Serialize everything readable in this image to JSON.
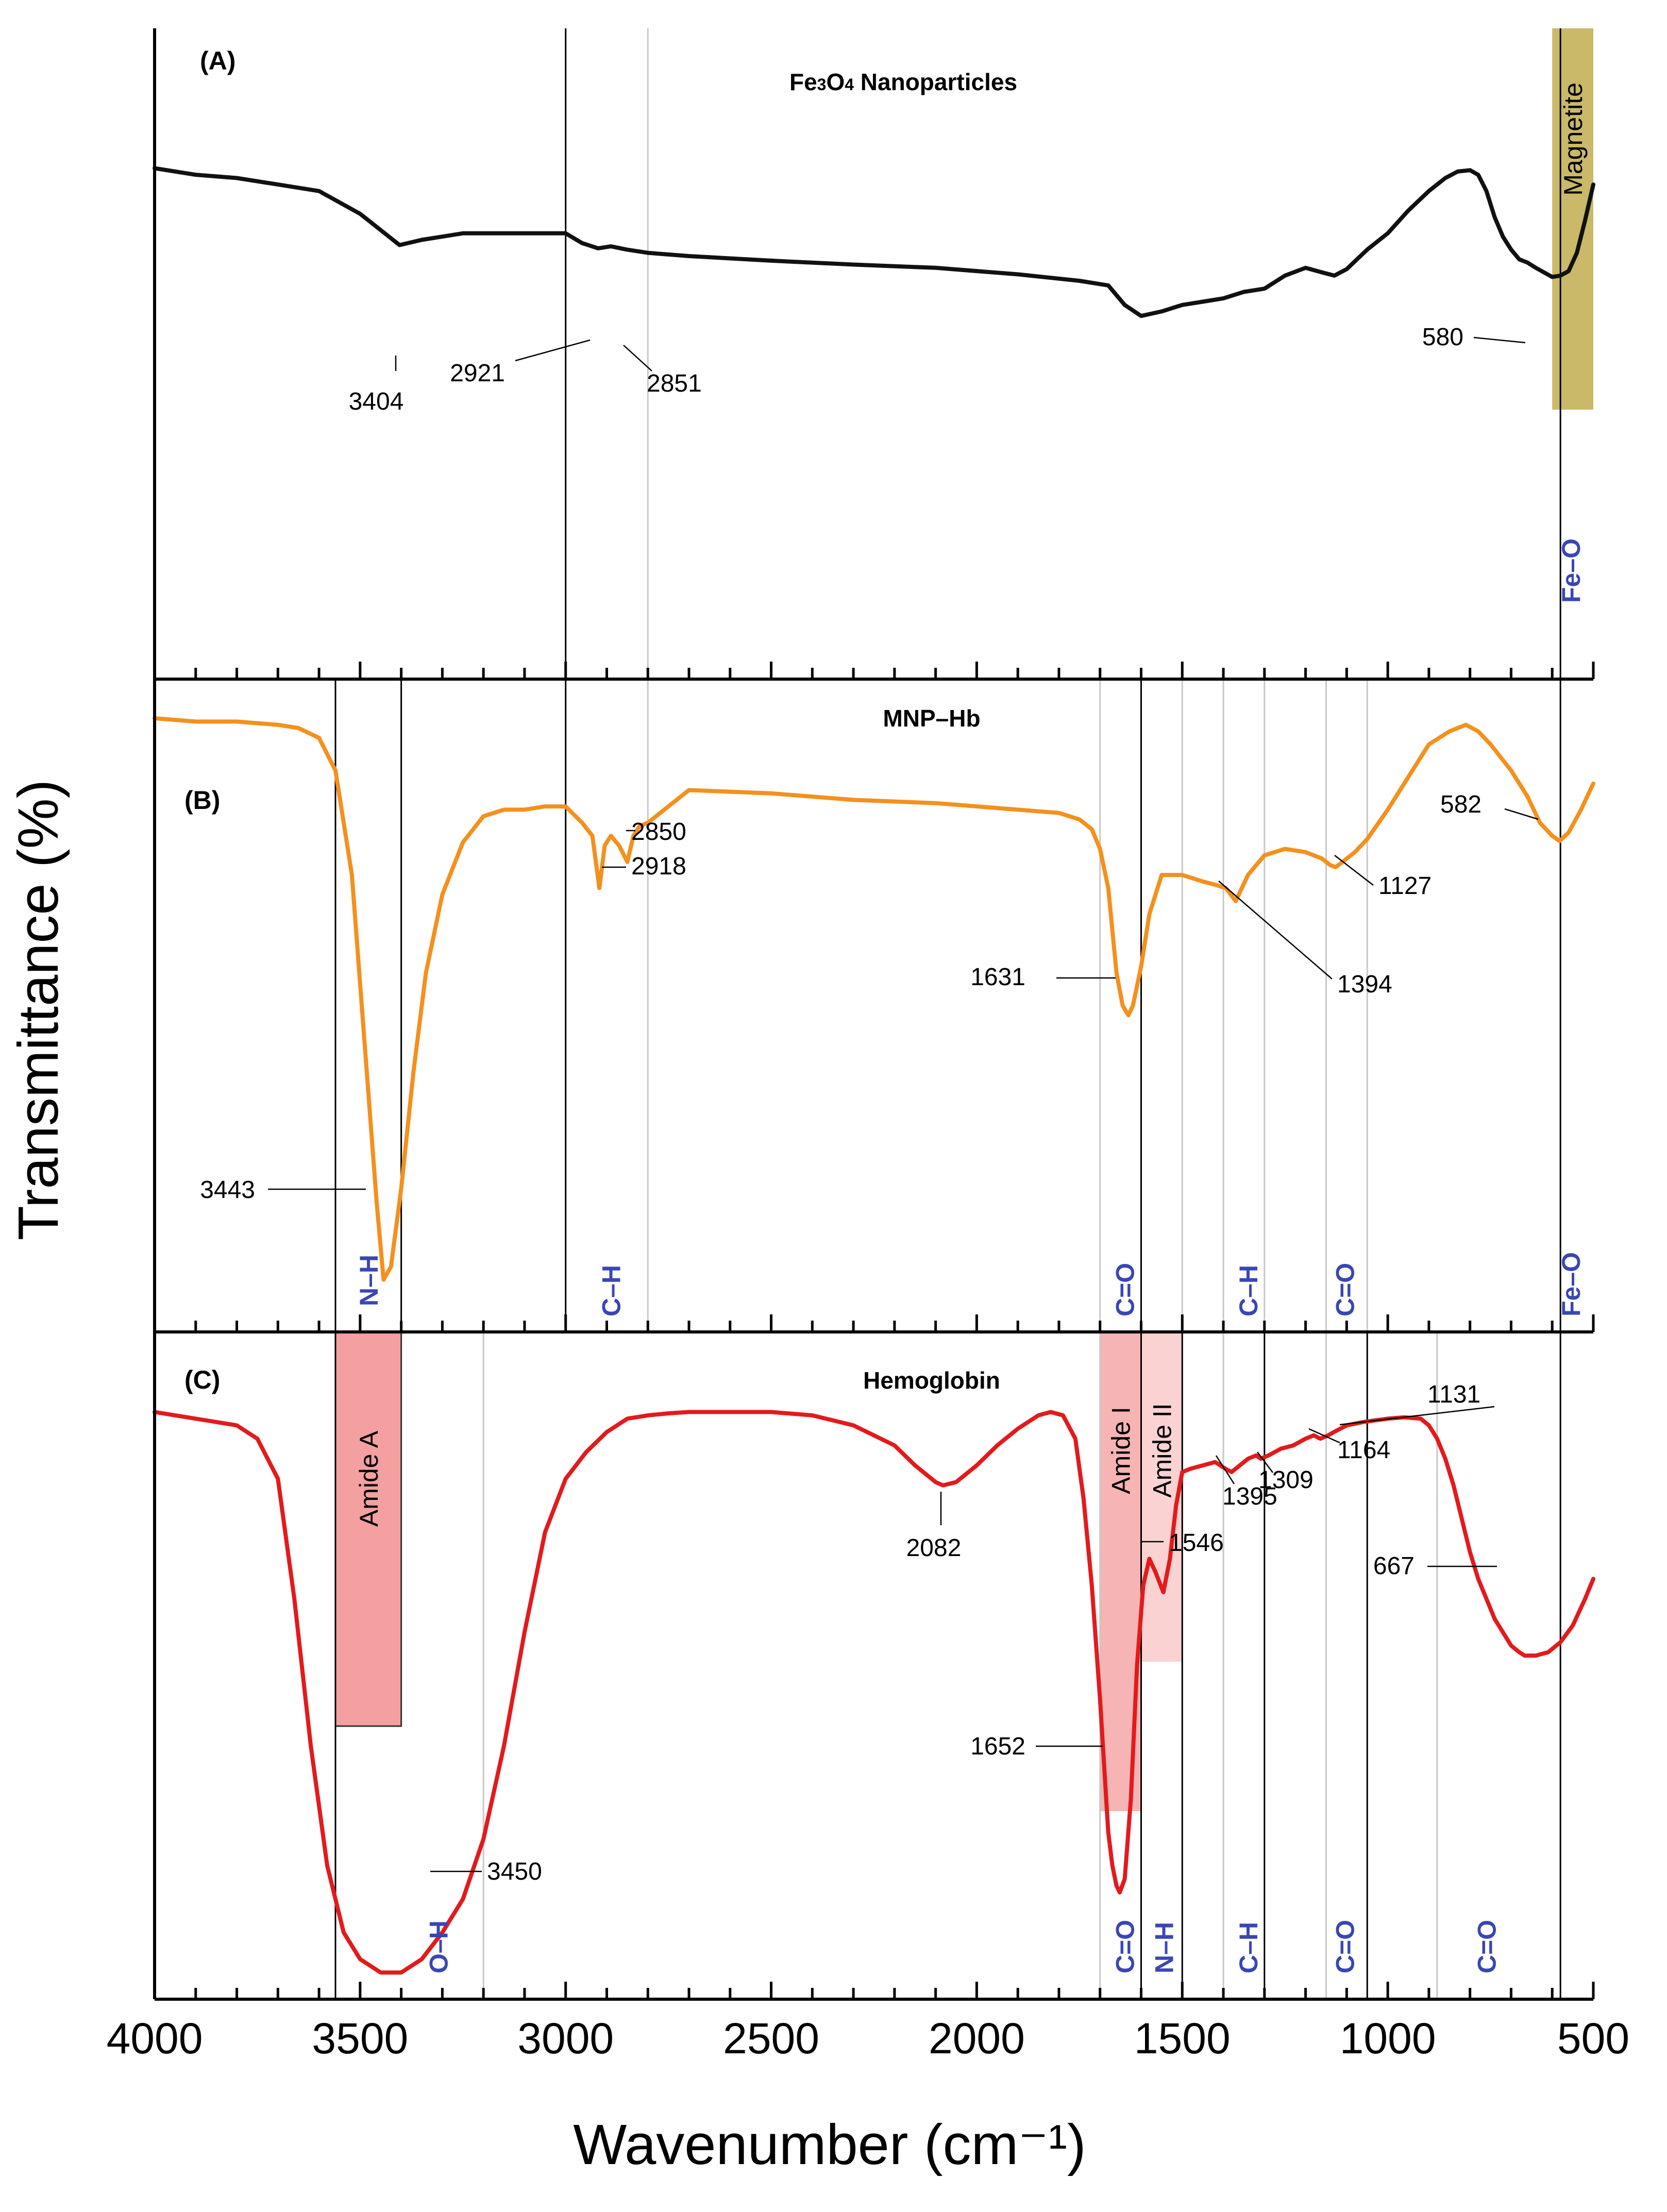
{
  "chart_data": {
    "type": "line",
    "xlabel": "Wavenumber (cm⁻¹)",
    "ylabel": "Transmittance (%)",
    "xlim": [
      4000,
      500
    ],
    "x_reversed": true,
    "x_ticks": [
      "4000",
      "3500",
      "3000",
      "2500",
      "2000",
      "1500",
      "1000",
      "500"
    ],
    "x_tick_values": [
      4000,
      3500,
      3000,
      2500,
      2000,
      1500,
      1000,
      500
    ],
    "y_unit": "relative transmittance (0 = panel bottom, 1 = panel top)",
    "panels": [
      {
        "label": "(A)",
        "title": "Fe3O4 Nanoparticles",
        "title_base": "Fe",
        "title_sub1": "3",
        "title_mid": "O",
        "title_sub2": "4",
        "title_rest": "Nanoparticles",
        "color": "#111111",
        "series": {
          "name": "Fe3O4 Nanoparticles",
          "x": [
            4000,
            3900,
            3800,
            3700,
            3600,
            3500,
            3450,
            3404,
            3350,
            3300,
            3250,
            3200,
            3100,
            3000,
            2960,
            2921,
            2890,
            2851,
            2800,
            2700,
            2500,
            2300,
            2100,
            1900,
            1750,
            1680,
            1640,
            1600,
            1550,
            1500,
            1450,
            1400,
            1350,
            1300,
            1250,
            1200,
            1160,
            1130,
            1100,
            1050,
            1000,
            950,
            900,
            860,
            830,
            800,
            780,
            760,
            740,
            720,
            700,
            680,
            660,
            640,
            620,
            600,
            580,
            560,
            540,
            520,
            500
          ],
          "y": [
            0.785,
            0.775,
            0.77,
            0.76,
            0.75,
            0.715,
            0.69,
            0.667,
            0.675,
            0.68,
            0.685,
            0.685,
            0.685,
            0.685,
            0.67,
            0.662,
            0.665,
            0.66,
            0.655,
            0.65,
            0.643,
            0.637,
            0.632,
            0.622,
            0.612,
            0.605,
            0.575,
            0.558,
            0.565,
            0.575,
            0.58,
            0.585,
            0.595,
            0.6,
            0.62,
            0.632,
            0.625,
            0.62,
            0.63,
            0.66,
            0.685,
            0.72,
            0.75,
            0.77,
            0.78,
            0.782,
            0.775,
            0.75,
            0.71,
            0.68,
            0.66,
            0.645,
            0.64,
            0.632,
            0.625,
            0.618,
            0.62,
            0.627,
            0.655,
            0.705,
            0.76
          ]
        },
        "peaks": [
          {
            "label": "3404",
            "x": 3404
          },
          {
            "label": "2921",
            "x": 2921
          },
          {
            "label": "2851",
            "x": 2851
          },
          {
            "label": "580",
            "x": 580
          }
        ],
        "regions": [
          {
            "label": "Magnetite",
            "x": [
              600,
              500
            ],
            "color": "#c9b968"
          }
        ],
        "bonds": [
          {
            "label": "Fe–O",
            "x": 555
          }
        ]
      },
      {
        "label": "(B)",
        "title": "MNP–Hb",
        "color": "#f4901d",
        "series": {
          "name": "MNP–Hb",
          "x": [
            4000,
            3900,
            3800,
            3700,
            3650,
            3600,
            3560,
            3520,
            3490,
            3460,
            3443,
            3425,
            3400,
            3370,
            3340,
            3300,
            3250,
            3200,
            3150,
            3100,
            3050,
            3000,
            2960,
            2935,
            2918,
            2905,
            2890,
            2870,
            2850,
            2835,
            2820,
            2800,
            2700,
            2500,
            2300,
            2100,
            1900,
            1800,
            1750,
            1720,
            1700,
            1680,
            1660,
            1645,
            1631,
            1620,
            1600,
            1580,
            1550,
            1500,
            1450,
            1420,
            1394,
            1370,
            1340,
            1300,
            1250,
            1200,
            1160,
            1140,
            1127,
            1110,
            1080,
            1050,
            1000,
            950,
            900,
            850,
            810,
            780,
            750,
            700,
            660,
            630,
            600,
            582,
            560,
            530,
            500
          ],
          "y": [
            0.94,
            0.935,
            0.935,
            0.93,
            0.925,
            0.91,
            0.86,
            0.7,
            0.45,
            0.2,
            0.08,
            0.1,
            0.22,
            0.4,
            0.55,
            0.67,
            0.75,
            0.79,
            0.8,
            0.8,
            0.805,
            0.805,
            0.78,
            0.76,
            0.68,
            0.745,
            0.76,
            0.745,
            0.72,
            0.76,
            0.775,
            0.78,
            0.83,
            0.825,
            0.815,
            0.81,
            0.8,
            0.795,
            0.785,
            0.77,
            0.74,
            0.68,
            0.55,
            0.5,
            0.485,
            0.5,
            0.56,
            0.64,
            0.7,
            0.7,
            0.69,
            0.685,
            0.68,
            0.66,
            0.7,
            0.73,
            0.74,
            0.735,
            0.725,
            0.715,
            0.712,
            0.72,
            0.735,
            0.755,
            0.8,
            0.85,
            0.9,
            0.92,
            0.93,
            0.92,
            0.9,
            0.86,
            0.82,
            0.78,
            0.76,
            0.752,
            0.765,
            0.8,
            0.84
          ]
        },
        "peaks": [
          {
            "label": "3443",
            "x": 3443
          },
          {
            "label": "2918",
            "x": 2918
          },
          {
            "label": "2850",
            "x": 2850
          },
          {
            "label": "1631",
            "x": 1631
          },
          {
            "label": "1394",
            "x": 1394
          },
          {
            "label": "1127",
            "x": 1127
          },
          {
            "label": "582",
            "x": 582
          }
        ],
        "bonds": [
          {
            "label": "N–H",
            "x": 3480
          },
          {
            "label": "C–H",
            "x": 2890
          },
          {
            "label": "C=O",
            "x": 1640
          },
          {
            "label": "C–H",
            "x": 1340
          },
          {
            "label": "C=O",
            "x": 1105
          },
          {
            "label": "Fe–O",
            "x": 555
          }
        ]
      },
      {
        "label": "(C)",
        "title": "Hemoglobin",
        "color": "#e31a1c",
        "series": {
          "name": "Hemoglobin",
          "x": [
            4000,
            3900,
            3800,
            3750,
            3700,
            3660,
            3620,
            3580,
            3540,
            3500,
            3450,
            3400,
            3350,
            3300,
            3250,
            3200,
            3150,
            3100,
            3050,
            3000,
            2950,
            2900,
            2850,
            2800,
            2750,
            2700,
            2600,
            2500,
            2400,
            2300,
            2200,
            2150,
            2100,
            2082,
            2050,
            2000,
            1950,
            1900,
            1850,
            1820,
            1790,
            1760,
            1740,
            1720,
            1700,
            1690,
            1680,
            1670,
            1660,
            1652,
            1640,
            1625,
            1610,
            1595,
            1580,
            1565,
            1546,
            1530,
            1515,
            1500,
            1480,
            1450,
            1420,
            1395,
            1380,
            1360,
            1340,
            1320,
            1309,
            1290,
            1260,
            1230,
            1200,
            1180,
            1164,
            1145,
            1131,
            1100,
            1060,
            1000,
            960,
            920,
            900,
            880,
            860,
            840,
            820,
            800,
            780,
            760,
            740,
            720,
            700,
            680,
            667,
            640,
            610,
            580,
            550,
            520,
            500
          ],
          "y": [
            0.88,
            0.87,
            0.86,
            0.84,
            0.78,
            0.6,
            0.38,
            0.2,
            0.1,
            0.06,
            0.04,
            0.04,
            0.06,
            0.1,
            0.15,
            0.24,
            0.38,
            0.55,
            0.7,
            0.78,
            0.82,
            0.85,
            0.87,
            0.875,
            0.878,
            0.88,
            0.88,
            0.88,
            0.875,
            0.86,
            0.83,
            0.8,
            0.775,
            0.77,
            0.775,
            0.8,
            0.83,
            0.855,
            0.875,
            0.88,
            0.875,
            0.84,
            0.75,
            0.62,
            0.45,
            0.35,
            0.25,
            0.2,
            0.17,
            0.16,
            0.18,
            0.3,
            0.5,
            0.62,
            0.66,
            0.64,
            0.61,
            0.66,
            0.74,
            0.79,
            0.795,
            0.8,
            0.805,
            0.795,
            0.79,
            0.8,
            0.81,
            0.815,
            0.81,
            0.815,
            0.825,
            0.83,
            0.84,
            0.845,
            0.84,
            0.845,
            0.85,
            0.86,
            0.865,
            0.87,
            0.872,
            0.87,
            0.86,
            0.84,
            0.81,
            0.77,
            0.72,
            0.67,
            0.63,
            0.6,
            0.57,
            0.55,
            0.53,
            0.52,
            0.515,
            0.515,
            0.52,
            0.535,
            0.56,
            0.6,
            0.63
          ]
        },
        "peaks": [
          {
            "label": "3450",
            "x": 3450
          },
          {
            "label": "2082",
            "x": 2082
          },
          {
            "label": "1652",
            "x": 1652
          },
          {
            "label": "1546",
            "x": 1546
          },
          {
            "label": "1395",
            "x": 1395
          },
          {
            "label": "1309",
            "x": 1309
          },
          {
            "label": "1164",
            "x": 1164
          },
          {
            "label": "1131",
            "x": 1131
          },
          {
            "label": "667",
            "x": 667
          }
        ],
        "regions": [
          {
            "label": "Amide A",
            "x": [
              3560,
              3400
            ],
            "color": "#f4a0a0"
          },
          {
            "label": "Amide I",
            "x": [
              1700,
              1600
            ],
            "color": "#f6b4b4"
          },
          {
            "label": "Amide II",
            "x": [
              1600,
              1500
            ],
            "color": "#fad2d2"
          }
        ],
        "bonds": [
          {
            "label": "O–H",
            "x": 3310
          },
          {
            "label": "C=O",
            "x": 1640
          },
          {
            "label": "N–H",
            "x": 1545
          },
          {
            "label": "C–H",
            "x": 1340
          },
          {
            "label": "C=O",
            "x": 1105
          },
          {
            "label": "C=O",
            "x": 760
          }
        ]
      }
    ]
  }
}
